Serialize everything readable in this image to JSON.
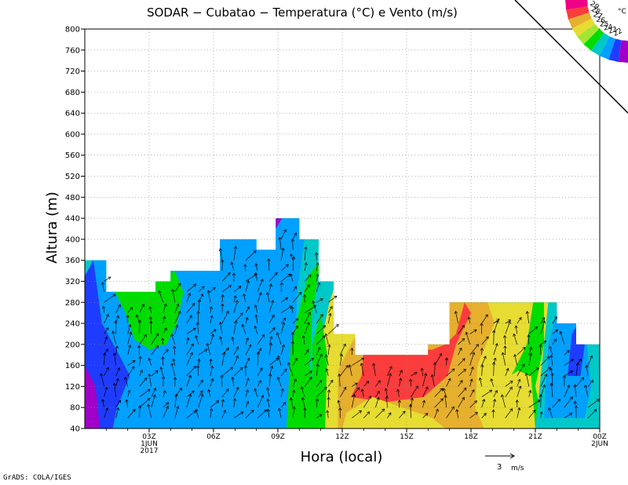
{
  "title": "SODAR − Cubatao − Temperatura (°C) e Vento (m/s)",
  "footer": "GrADS: COLA/IGES",
  "colors": {
    "c22": "#a000c8",
    "c23": "#1e3cff",
    "c24": "#00a0ff",
    "c25": "#00c8c8",
    "c26": "#00dc00",
    "c27": "#a0e632",
    "c28": "#e6dc32",
    "c29": "#e6af2d",
    "c30": "#fa3c3c",
    "c31": "#f00082",
    "magenta": "#f00082"
  },
  "chart_data": {
    "type": "heatmap",
    "title": "SODAR − Cubatao − Temperatura (°C) e Vento (m/s)",
    "xlabel": "Hora (local)",
    "ylabel": "Altura (m)",
    "y_range": [
      40,
      800
    ],
    "y_ticks": [
      40,
      80,
      120,
      160,
      200,
      240,
      280,
      320,
      360,
      400,
      440,
      480,
      520,
      560,
      600,
      640,
      680,
      720,
      760,
      800
    ],
    "x_range_hours": [
      0,
      24
    ],
    "x_ticks": [
      {
        "hour": 3,
        "label": "03Z",
        "sub": "1JUN",
        "sub2": "2017"
      },
      {
        "hour": 6,
        "label": "06Z",
        "sub": "",
        "sub2": ""
      },
      {
        "hour": 9,
        "label": "09Z",
        "sub": "",
        "sub2": ""
      },
      {
        "hour": 12,
        "label": "12Z",
        "sub": "",
        "sub2": ""
      },
      {
        "hour": 15,
        "label": "15Z",
        "sub": "",
        "sub2": ""
      },
      {
        "hour": 18,
        "label": "18Z",
        "sub": "",
        "sub2": ""
      },
      {
        "hour": 21,
        "label": "21Z",
        "sub": "",
        "sub2": ""
      },
      {
        "hour": 24,
        "label": "00Z",
        "sub": "2JUN",
        "sub2": ""
      }
    ],
    "grid": true,
    "legend": {
      "placement": "top-right",
      "unit": "°C",
      "levels": [
        22,
        23,
        24,
        25,
        26,
        27,
        28,
        29
      ]
    },
    "wind_reference": {
      "value": 3,
      "label": "3",
      "unit": "m/s"
    },
    "data_top_height_by_hour": [
      {
        "from": 0,
        "to": 1,
        "top": 360
      },
      {
        "from": 1,
        "to": 3.3,
        "top": 300
      },
      {
        "from": 3.3,
        "to": 4,
        "top": 320
      },
      {
        "from": 4,
        "to": 5.3,
        "top": 340
      },
      {
        "from": 5.3,
        "to": 6.3,
        "top": 340
      },
      {
        "from": 6.3,
        "to": 8,
        "top": 400
      },
      {
        "from": 8,
        "to": 8.9,
        "top": 380
      },
      {
        "from": 8.9,
        "to": 10,
        "top": 440
      },
      {
        "from": 10,
        "to": 10.9,
        "top": 400
      },
      {
        "from": 10.9,
        "to": 11.6,
        "top": 320
      },
      {
        "from": 11.6,
        "to": 12.6,
        "top": 220
      },
      {
        "from": 12.6,
        "to": 13,
        "top": 180
      },
      {
        "from": 13,
        "to": 16,
        "top": 180
      },
      {
        "from": 16,
        "to": 17,
        "top": 200
      },
      {
        "from": 17,
        "to": 20.8,
        "top": 280
      },
      {
        "from": 20.8,
        "to": 21.3,
        "top": 280
      },
      {
        "from": 21.3,
        "to": 22,
        "top": 280
      },
      {
        "from": 22,
        "to": 22.9,
        "top": 240
      },
      {
        "from": 22.9,
        "to": 24,
        "top": 200
      }
    ]
  }
}
